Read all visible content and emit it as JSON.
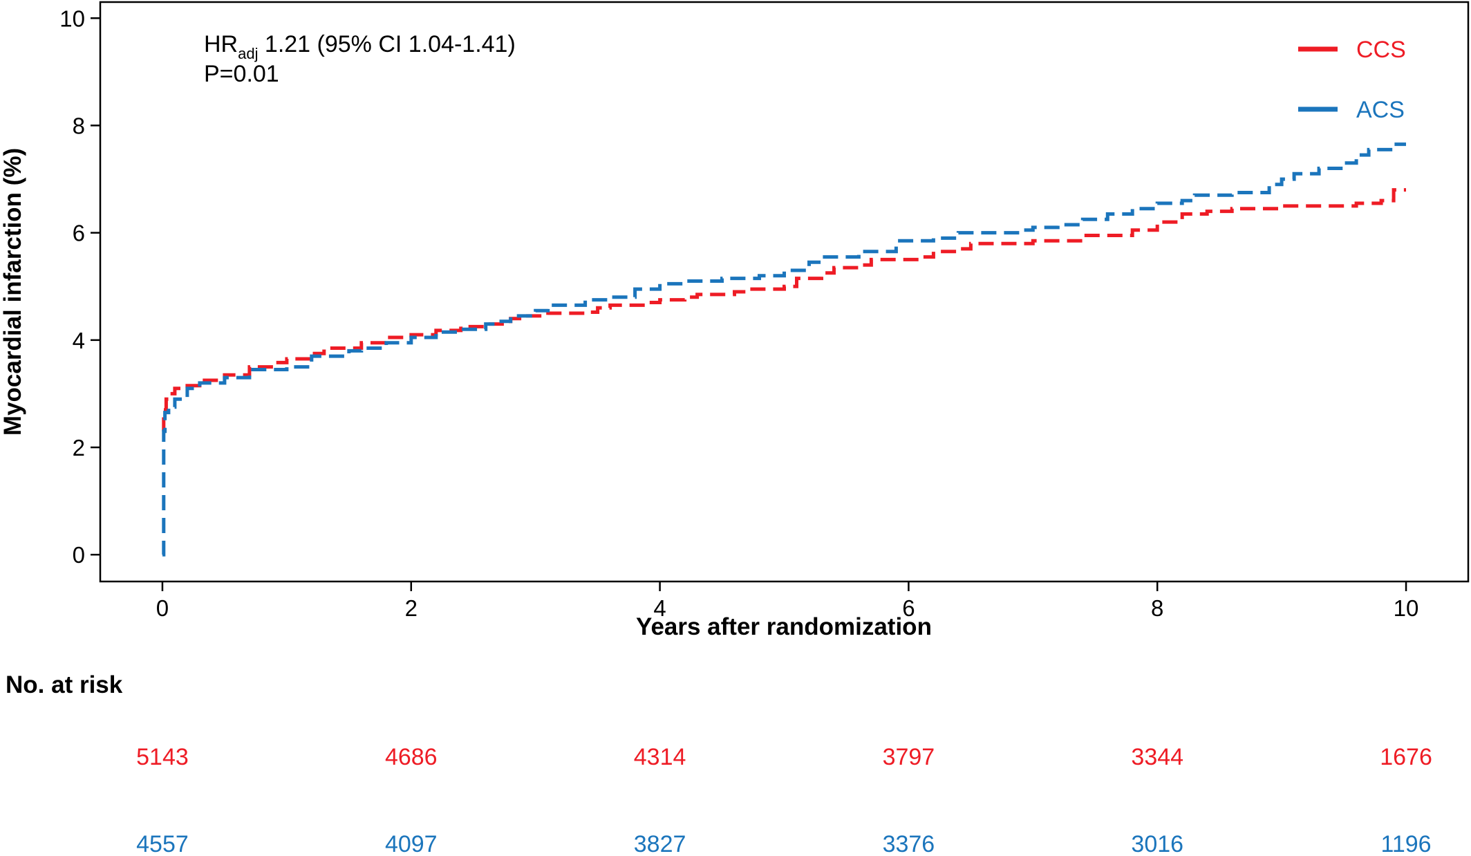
{
  "chart_data": {
    "type": "line",
    "title": "",
    "xlabel": "Years after randomization",
    "ylabel": "Myocardial infarction (%)",
    "xlim": [
      -0.5,
      10.5
    ],
    "ylim": [
      -0.5,
      10.3
    ],
    "x_ticks": [
      0,
      2,
      4,
      6,
      8,
      10
    ],
    "y_ticks": [
      0,
      2,
      4,
      6,
      8,
      10
    ],
    "grid": false,
    "legend_position": "top-right",
    "annotation": {
      "hr_prefix": "HR",
      "hr_subscript": "adj",
      "hr_text": " 1.21 (95% CI 1.04-1.41)",
      "p_text": "P=0.01"
    },
    "series": [
      {
        "name": "CCS",
        "color": "#ee1c25",
        "style": "dashed",
        "x": [
          0,
          0.01,
          0.03,
          0.06,
          0.1,
          0.2,
          0.3,
          0.5,
          0.7,
          0.9,
          1.0,
          1.2,
          1.3,
          1.6,
          1.8,
          2.0,
          2.2,
          2.4,
          2.6,
          2.8,
          2.9,
          3.1,
          3.4,
          3.5,
          3.6,
          3.9,
          4.0,
          4.2,
          4.3,
          4.6,
          4.7,
          5.0,
          5.1,
          5.3,
          5.4,
          5.6,
          5.7,
          6.1,
          6.2,
          6.4,
          6.5,
          6.9,
          7.0,
          7.3,
          7.4,
          7.7,
          7.8,
          8.0,
          8.2,
          8.4,
          8.6,
          8.8,
          9.0,
          9.6,
          9.8,
          9.9,
          10.0
        ],
        "y": [
          2.3,
          2.7,
          2.9,
          3.0,
          3.1,
          3.15,
          3.25,
          3.35,
          3.5,
          3.58,
          3.65,
          3.75,
          3.85,
          3.95,
          4.05,
          4.1,
          4.18,
          4.25,
          4.3,
          4.4,
          4.45,
          4.5,
          4.52,
          4.6,
          4.65,
          4.7,
          4.75,
          4.8,
          4.85,
          4.9,
          4.95,
          5.0,
          5.15,
          5.25,
          5.35,
          5.4,
          5.5,
          5.55,
          5.65,
          5.7,
          5.8,
          5.8,
          5.85,
          5.85,
          5.95,
          5.95,
          6.05,
          6.2,
          6.35,
          6.4,
          6.45,
          6.45,
          6.5,
          6.55,
          6.6,
          6.8,
          6.8
        ],
        "at_risk": [
          5143,
          4686,
          4314,
          3797,
          3344,
          1676
        ]
      },
      {
        "name": "ACS",
        "color": "#1b75bc",
        "style": "dashed",
        "x": [
          0,
          0.01,
          0.02,
          0.05,
          0.1,
          0.2,
          0.3,
          0.5,
          0.7,
          1.0,
          1.2,
          1.5,
          1.6,
          1.8,
          2.0,
          2.2,
          2.4,
          2.6,
          2.7,
          2.8,
          3.0,
          3.1,
          3.4,
          3.6,
          3.8,
          4.0,
          4.2,
          4.5,
          4.8,
          4.9,
          5.0,
          5.2,
          5.3,
          5.6,
          5.9,
          6.0,
          6.2,
          6.4,
          6.5,
          6.9,
          7.0,
          7.2,
          7.4,
          7.6,
          7.8,
          8.0,
          8.2,
          8.3,
          8.6,
          8.7,
          8.9,
          9.0,
          9.1,
          9.3,
          9.5,
          9.6,
          9.7,
          9.9,
          10.0
        ],
        "y": [
          0,
          2.3,
          2.65,
          2.75,
          2.9,
          3.1,
          3.2,
          3.3,
          3.45,
          3.5,
          3.7,
          3.8,
          3.85,
          3.95,
          4.05,
          4.15,
          4.2,
          4.3,
          4.35,
          4.45,
          4.55,
          4.65,
          4.75,
          4.8,
          4.95,
          5.05,
          5.1,
          5.15,
          5.2,
          5.2,
          5.3,
          5.45,
          5.55,
          5.65,
          5.85,
          5.85,
          5.9,
          6.0,
          6.0,
          6.05,
          6.1,
          6.15,
          6.25,
          6.35,
          6.45,
          6.55,
          6.6,
          6.7,
          6.75,
          6.75,
          6.9,
          7.0,
          7.1,
          7.2,
          7.3,
          7.45,
          7.55,
          7.65,
          7.65
        ],
        "at_risk": [
          4557,
          4097,
          3827,
          3376,
          3016,
          1196
        ]
      }
    ],
    "at_risk_title": "No. at risk"
  }
}
